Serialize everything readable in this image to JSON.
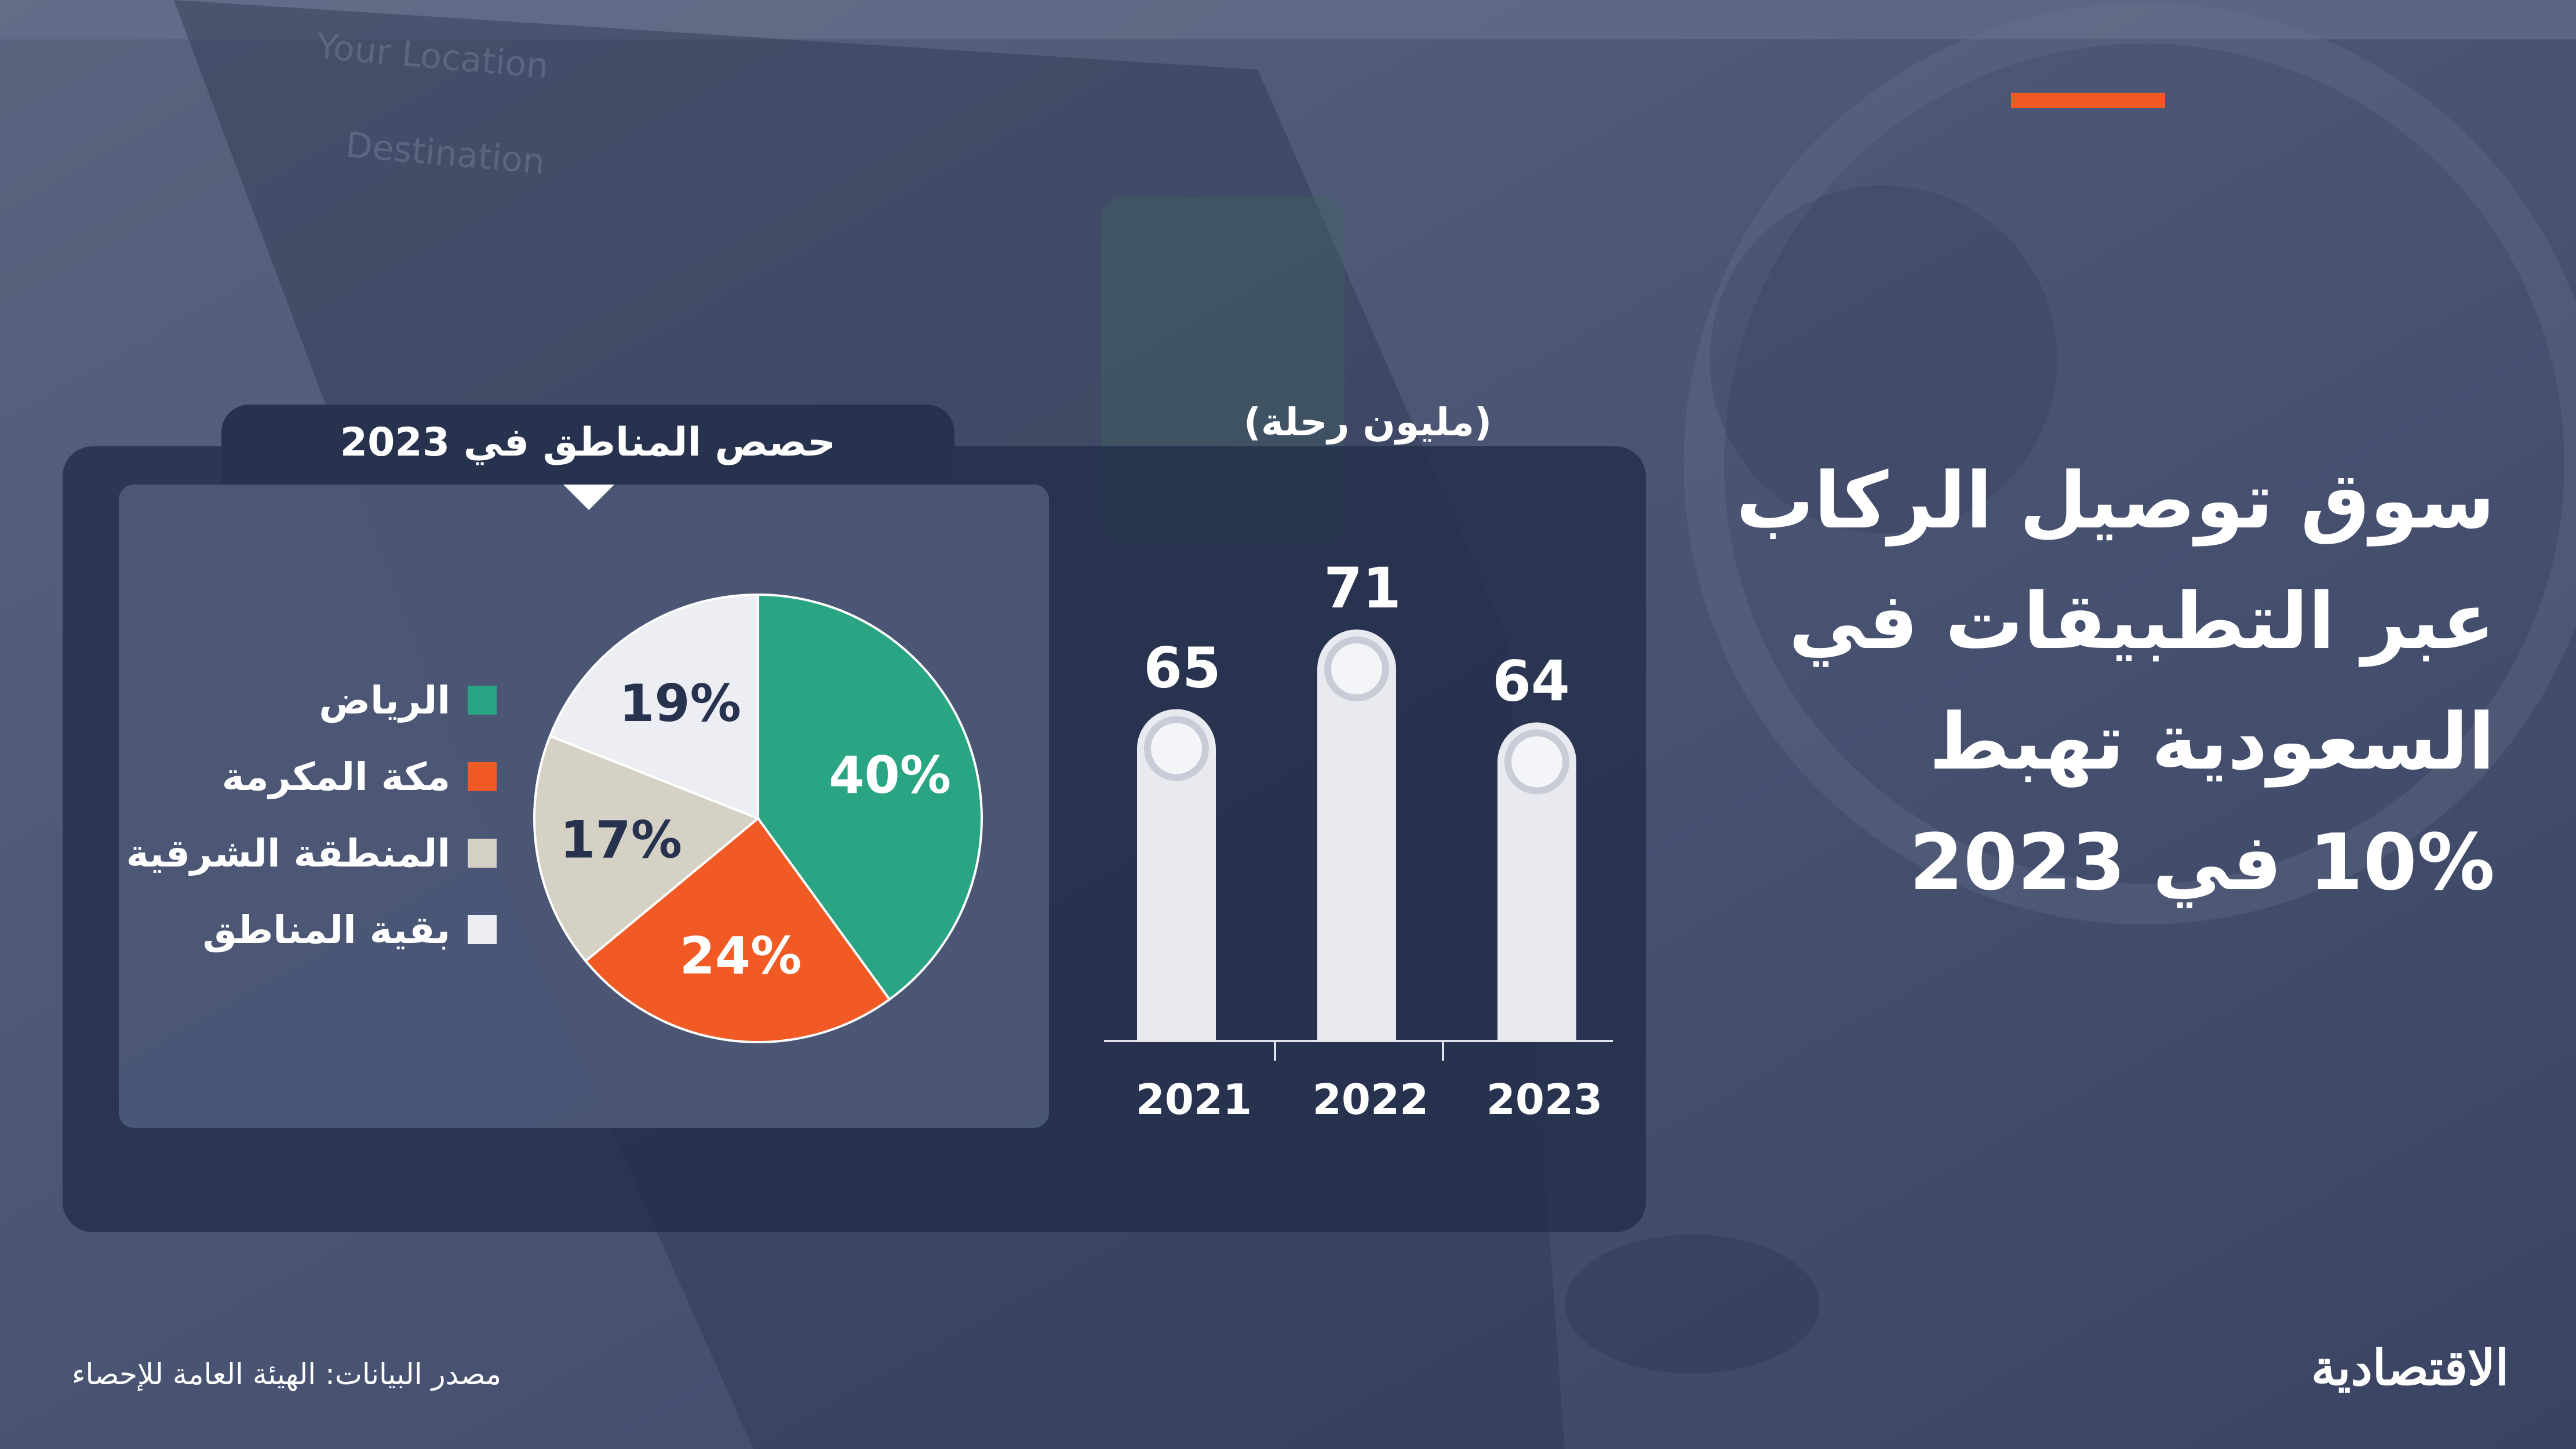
{
  "headline": {
    "lines": [
      "سوق توصيل الركاب",
      "عبر التطبيقات في",
      "السعودية تهبط",
      "10% في 2023"
    ]
  },
  "colors": {
    "accent": "#f15a24",
    "riyadh": "#2aa584",
    "makkah": "#f15a24",
    "eastern": "#d5d1c4",
    "others": "#eceef3",
    "bar": "#e8eaf0"
  },
  "chart_data": [
    {
      "type": "bar",
      "ylabel": "(مليون رحلة)",
      "categories": [
        "2021",
        "2022",
        "2023"
      ],
      "values": [
        65,
        71,
        64
      ],
      "ylim": [
        0,
        80
      ],
      "legend": "none",
      "grid": false
    },
    {
      "type": "pie",
      "title": "حصص المناطق في 2023",
      "slices": [
        {
          "name": "الرياض",
          "value": 40,
          "label": "40%",
          "color": "#2aa584"
        },
        {
          "name": "مكة المكرمة",
          "value": 24,
          "label": "24%",
          "color": "#f15a24"
        },
        {
          "name": "المنطقة الشرقية",
          "value": 17,
          "label": "17%",
          "color": "#d5d1c4"
        },
        {
          "name": "بقية المناطق",
          "value": 19,
          "label": "19%",
          "color": "#eceef3"
        }
      ],
      "legend": "left"
    }
  ],
  "footer": {
    "source": "مصدر البيانات: الهيئة العامة للإحصاء",
    "logo_text": "الاقتصادية"
  }
}
